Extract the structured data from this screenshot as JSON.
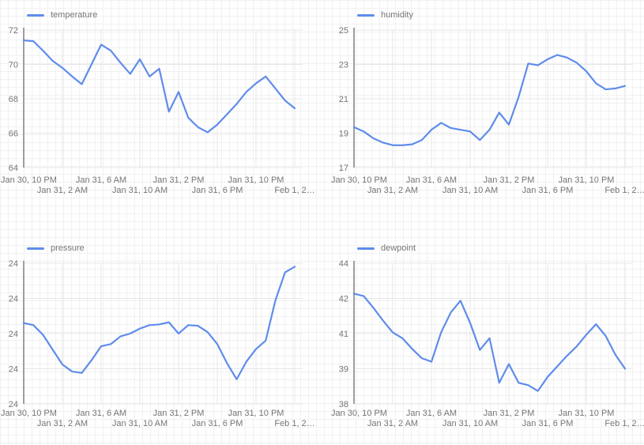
{
  "colors": {
    "line": "#5f8ceb",
    "label_text": "#757575",
    "axis_line": "#9e9e9e",
    "major_grid": "#e7e7e7",
    "paper_grid": "#f1f1f1",
    "background": "#ffffff"
  },
  "chart_data": {
    "type": "line",
    "layout": "2x2-grid",
    "legend_position": "top-left",
    "grid": true,
    "x_tick_labels_row1": [
      "Jan 30, 10 PM",
      "Jan 31, 6 AM",
      "Jan 31, 2 PM",
      "Jan 31, 10 PM"
    ],
    "x_tick_labels_row2": [
      "Jan 31, 2 AM",
      "Jan 31, 10 AM",
      "Jan 31, 6 PM",
      "Feb 1, 2…"
    ],
    "x_points": [
      "Jan 30 10PM",
      "11PM",
      "Jan 31 12AM",
      "1AM",
      "2AM",
      "3AM",
      "4AM",
      "5AM",
      "6AM",
      "7AM",
      "8AM",
      "9AM",
      "10AM",
      "11AM",
      "12PM",
      "1PM",
      "2PM",
      "3PM",
      "4PM",
      "5PM",
      "6PM",
      "7PM",
      "8PM",
      "9PM",
      "10PM",
      "11PM",
      "Feb 1 12AM",
      "1AM",
      "2AM"
    ],
    "charts": [
      {
        "title": "temperature",
        "type": "line",
        "ylim": [
          64,
          72
        ],
        "y_tick_labels": [
          "72",
          "70",
          "68",
          "66",
          "64"
        ],
        "values": [
          71.4,
          71.35,
          70.8,
          70.2,
          69.8,
          69.3,
          68.85,
          70.0,
          71.15,
          70.8,
          70.1,
          69.45,
          70.3,
          69.3,
          69.75,
          67.25,
          68.4,
          66.9,
          66.35,
          66.05,
          66.5,
          67.1,
          67.7,
          68.4,
          68.9,
          69.3,
          68.6,
          67.9,
          67.45
        ]
      },
      {
        "title": "humidity",
        "type": "line",
        "ylim": [
          17,
          25
        ],
        "y_tick_labels": [
          "25",
          "23",
          "21",
          "19",
          "17"
        ],
        "values": [
          19.35,
          19.1,
          18.7,
          18.45,
          18.3,
          18.3,
          18.35,
          18.6,
          19.2,
          19.6,
          19.3,
          19.2,
          19.1,
          18.6,
          19.2,
          20.2,
          19.5,
          21.1,
          23.05,
          22.95,
          23.3,
          23.55,
          23.4,
          23.1,
          22.6,
          21.9,
          21.55,
          21.6,
          21.75
        ]
      },
      {
        "title": "pressure",
        "type": "line",
        "ylim": [
          23.9,
          24.1
        ],
        "y_tick_labels": [
          "24",
          "24",
          "24",
          "24",
          "24"
        ],
        "values": [
          24.015,
          24.012,
          23.998,
          23.977,
          23.956,
          23.946,
          23.944,
          23.962,
          23.982,
          23.985,
          23.996,
          24.0,
          24.007,
          24.012,
          24.013,
          24.016,
          24.0,
          24.012,
          24.011,
          24.002,
          23.985,
          23.958,
          23.935,
          23.96,
          23.978,
          23.99,
          24.047,
          24.087,
          24.095
        ]
      },
      {
        "title": "dewpoint",
        "type": "line",
        "ylim": [
          38,
          44
        ],
        "y_tick_labels": [
          "44",
          "42",
          "41",
          "39",
          "38"
        ],
        "values": [
          42.7,
          42.6,
          42.1,
          41.55,
          41.05,
          40.8,
          40.35,
          39.95,
          39.8,
          41.05,
          41.9,
          42.4,
          41.45,
          40.3,
          40.8,
          38.9,
          39.7,
          38.9,
          38.8,
          38.55,
          39.15,
          39.6,
          40.05,
          40.45,
          40.95,
          41.4,
          40.9,
          40.1,
          39.5
        ]
      }
    ]
  }
}
